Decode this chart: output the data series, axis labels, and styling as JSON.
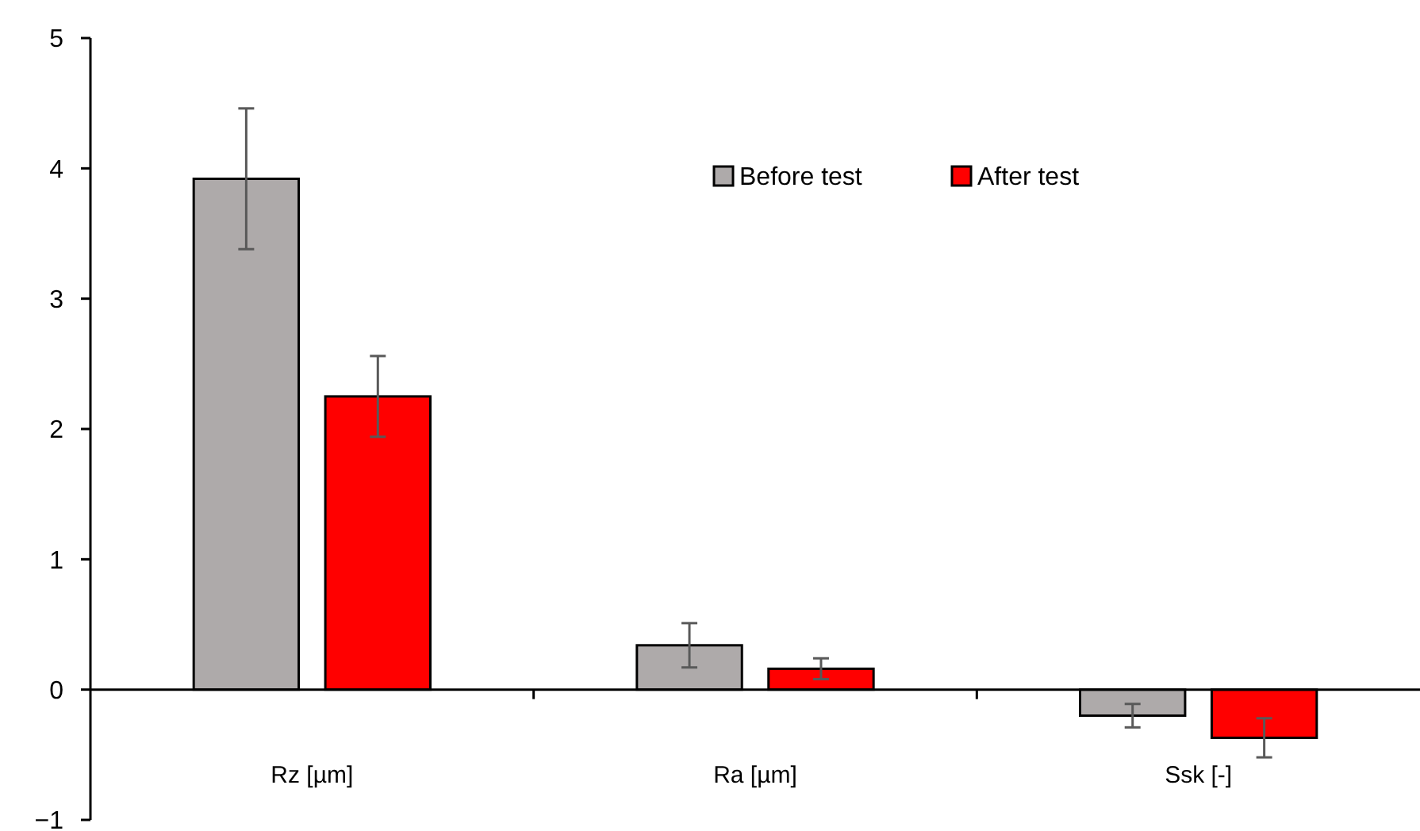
{
  "chart_data": {
    "type": "bar",
    "categories": [
      "Rz [µm]",
      "Ra [µm]",
      "Ssk [-]"
    ],
    "series": [
      {
        "name": "Before test",
        "color": "#aeaaaa",
        "values": [
          3.92,
          0.34,
          -0.2
        ],
        "errors": [
          0.54,
          0.17,
          0.09
        ]
      },
      {
        "name": "After test",
        "color": "#ff0000",
        "values": [
          2.25,
          0.16,
          -0.37
        ],
        "errors": [
          0.31,
          0.08,
          0.15
        ]
      }
    ],
    "ylim": [
      -1,
      5
    ],
    "yticks": [
      {
        "value": -1,
        "label": "−1"
      },
      0,
      1,
      2,
      3,
      4,
      5
    ],
    "legend": "top right"
  }
}
